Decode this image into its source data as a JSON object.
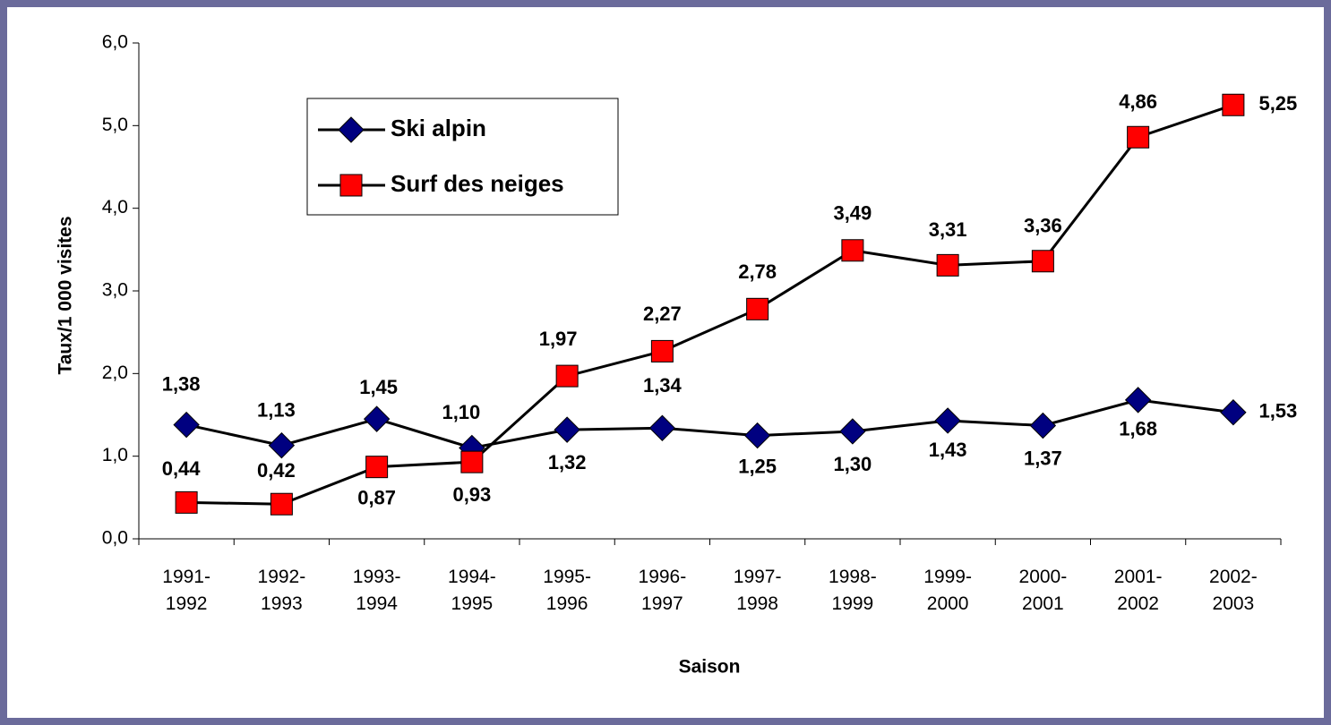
{
  "chart_data": {
    "type": "line",
    "categories": [
      "1991-1992",
      "1992-1993",
      "1993-1994",
      "1994-1995",
      "1995-1996",
      "1996-1997",
      "1997-1998",
      "1998-1999",
      "1999-2000",
      "2000-2001",
      "2001-2002",
      "2002-2003"
    ],
    "series": [
      {
        "name": "Ski alpin",
        "color": "#000080",
        "marker": "diamond",
        "values": [
          1.38,
          1.13,
          1.45,
          1.1,
          1.32,
          1.34,
          1.25,
          1.3,
          1.43,
          1.37,
          1.68,
          1.53
        ],
        "value_labels": [
          "1,38",
          "1,13",
          "1,45",
          "1,10",
          "1,32",
          "1,34",
          "1,25",
          "1,30",
          "1,43",
          "1,37",
          "1,68",
          "1,53"
        ]
      },
      {
        "name": "Surf des neiges",
        "color": "#ff0000",
        "marker": "square",
        "values": [
          0.44,
          0.42,
          0.87,
          0.93,
          1.97,
          2.27,
          2.78,
          3.49,
          3.31,
          3.36,
          4.86,
          5.25
        ],
        "value_labels": [
          "0,44",
          "0,42",
          "0,87",
          "0,93",
          "1,97",
          "2,27",
          "2,78",
          "3,49",
          "3,31",
          "3,36",
          "4,86",
          "5,25"
        ]
      }
    ],
    "ylim": [
      0,
      6
    ],
    "yticks": [
      {
        "value": 0,
        "label": "0,0"
      },
      {
        "value": 1,
        "label": "1,0"
      },
      {
        "value": 2,
        "label": "2,0"
      },
      {
        "value": 3,
        "label": "3,0"
      },
      {
        "value": 4,
        "label": "4,0"
      },
      {
        "value": 5,
        "label": "5,0"
      },
      {
        "value": 6,
        "label": "6,0"
      }
    ],
    "xlabel": "Saison",
    "ylabel": "Taux/1 000 visites"
  }
}
